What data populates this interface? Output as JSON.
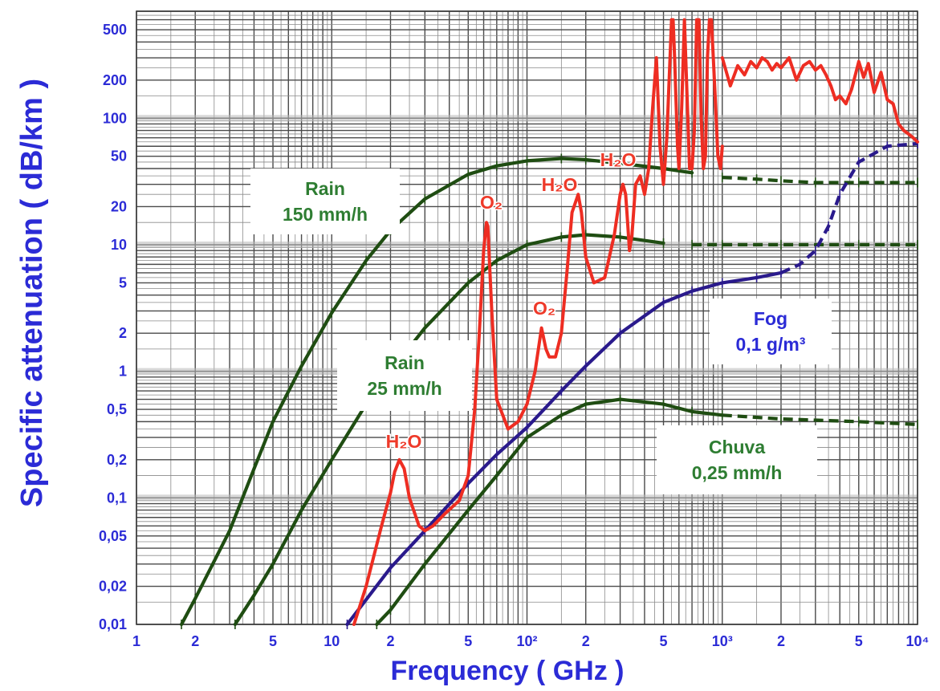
{
  "chart_data": {
    "type": "line",
    "title": "",
    "xlabel": "Frequency ( GHz )",
    "ylabel": "Specific attenuation ( dB/km )",
    "x_scale": "log",
    "y_scale": "log",
    "xlim": [
      1,
      10000
    ],
    "ylim": [
      0.01,
      700
    ],
    "grid": true,
    "x_ticks": [
      {
        "value": 1,
        "label": "1"
      },
      {
        "value": 2,
        "label": "2"
      },
      {
        "value": 5,
        "label": "5"
      },
      {
        "value": 10,
        "label": "10"
      },
      {
        "value": 20,
        "label": "2"
      },
      {
        "value": 50,
        "label": "5"
      },
      {
        "value": 100,
        "label": "10²"
      },
      {
        "value": 200,
        "label": "2"
      },
      {
        "value": 500,
        "label": "5"
      },
      {
        "value": 1000,
        "label": "10³"
      },
      {
        "value": 2000,
        "label": "2"
      },
      {
        "value": 5000,
        "label": "5"
      },
      {
        "value": 10000,
        "label": "10⁴"
      }
    ],
    "y_ticks": [
      {
        "value": 0.01,
        "label": "0,01"
      },
      {
        "value": 0.02,
        "label": "0,02"
      },
      {
        "value": 0.05,
        "label": "0,05"
      },
      {
        "value": 0.1,
        "label": "0,1"
      },
      {
        "value": 0.2,
        "label": "0,2"
      },
      {
        "value": 0.5,
        "label": "0,5"
      },
      {
        "value": 1,
        "label": "1"
      },
      {
        "value": 2,
        "label": "2"
      },
      {
        "value": 5,
        "label": "5"
      },
      {
        "value": 10,
        "label": "10"
      },
      {
        "value": 20,
        "label": "20"
      },
      {
        "value": 50,
        "label": "50"
      },
      {
        "value": 100,
        "label": "100"
      },
      {
        "value": 200,
        "label": "200"
      },
      {
        "value": 500,
        "label": "500"
      }
    ],
    "series": [
      {
        "key": "rain150",
        "color": "#1f4d12",
        "x": [
          1.7,
          2,
          3,
          4,
          5,
          7,
          10,
          15,
          20,
          30,
          50,
          70,
          100,
          150,
          200,
          300,
          500,
          700,
          1000,
          1500,
          2000,
          3000,
          5000,
          10000
        ],
        "y": [
          0.01,
          0.016,
          0.055,
          0.17,
          0.4,
          1.1,
          2.9,
          7.5,
          13,
          23,
          36,
          42,
          46,
          48,
          47,
          44,
          40,
          37,
          34,
          33,
          32,
          31,
          31,
          31
        ],
        "dashed_from_x": 800
      },
      {
        "key": "rain25",
        "color": "#1f4d12",
        "x": [
          3.2,
          4,
          5,
          7,
          10,
          15,
          20,
          30,
          50,
          70,
          100,
          150,
          200,
          300,
          500,
          700,
          1000,
          2000,
          5000,
          10000
        ],
        "y": [
          0.01,
          0.017,
          0.03,
          0.08,
          0.2,
          0.55,
          1,
          2.2,
          5,
          7.5,
          10,
          11.5,
          12,
          11.5,
          10.3,
          10,
          10,
          10,
          10,
          10
        ],
        "dashed_from_x": 550
      },
      {
        "key": "rain025",
        "color": "#1f4d12",
        "x": [
          17,
          20,
          30,
          50,
          70,
          100,
          150,
          200,
          300,
          500,
          700,
          1000,
          2000,
          5000,
          10000
        ],
        "y": [
          0.01,
          0.013,
          0.03,
          0.08,
          0.15,
          0.3,
          0.45,
          0.55,
          0.6,
          0.55,
          0.48,
          0.45,
          0.42,
          0.4,
          0.38
        ],
        "dashed_from_x": 1000
      },
      {
        "key": "fog",
        "color": "#2a1a8c",
        "x": [
          12,
          20,
          30,
          50,
          70,
          100,
          150,
          200,
          300,
          500,
          700,
          1000,
          1500,
          2000,
          2500,
          3000,
          3500,
          4000,
          5000,
          7000,
          10000
        ],
        "y": [
          0.01,
          0.028,
          0.055,
          0.13,
          0.22,
          0.36,
          0.7,
          1.1,
          2,
          3.5,
          4.3,
          5,
          5.5,
          6,
          7,
          9,
          14,
          25,
          45,
          60,
          63
        ],
        "dashed_from_x": 2000
      },
      {
        "key": "gases",
        "color": "#ee2d22",
        "x": [
          13,
          15,
          18,
          20,
          21,
          22.2,
          23.5,
          25,
          28,
          30,
          33,
          38,
          45,
          50,
          54,
          57,
          60,
          62,
          63,
          66,
          70,
          80,
          90,
          100,
          110,
          118.7,
          125,
          130,
          140,
          150,
          160,
          170,
          183,
          190,
          200,
          220,
          250,
          280,
          300,
          310,
          320,
          325,
          335,
          345,
          360,
          380,
          400,
          420,
          440,
          460,
          480,
          500,
          520,
          550,
          560,
          570,
          590,
          600,
          620,
          640,
          660,
          680,
          700,
          720,
          740,
          760,
          780,
          800,
          820,
          840,
          860,
          880,
          900,
          920,
          950,
          980,
          1000
        ],
        "y": [
          0.01,
          0.02,
          0.06,
          0.11,
          0.16,
          0.2,
          0.17,
          0.1,
          0.06,
          0.055,
          0.06,
          0.075,
          0.095,
          0.15,
          0.5,
          2,
          9,
          15,
          14,
          3,
          0.6,
          0.35,
          0.4,
          0.55,
          1,
          2.2,
          1.5,
          1.3,
          1.3,
          2,
          6,
          18,
          25,
          18,
          8,
          5,
          5.5,
          12,
          25,
          30,
          25,
          18,
          9,
          12,
          30,
          35,
          25,
          40,
          120,
          300,
          60,
          30,
          70,
          600,
          600,
          300,
          60,
          40,
          120,
          600,
          150,
          40,
          40,
          80,
          600,
          600,
          100,
          40,
          50,
          300,
          600,
          600,
          300,
          150,
          50,
          40,
          60
        ]
      },
      {
        "key": "gases_noise",
        "color": "#ee2d22",
        "x": [
          1000,
          1100,
          1200,
          1300,
          1400,
          1500,
          1600,
          1700,
          1800,
          1900,
          2000,
          2200,
          2400,
          2600,
          2800,
          3000,
          3200,
          3400,
          3600,
          3800,
          4000,
          4300,
          4600,
          5000,
          5300,
          5600,
          6000,
          6500,
          7000,
          7500,
          8000,
          8500,
          9000,
          9500,
          10000
        ],
        "y": [
          300,
          180,
          260,
          220,
          280,
          250,
          300,
          280,
          240,
          270,
          250,
          300,
          200,
          260,
          280,
          240,
          260,
          220,
          180,
          140,
          150,
          130,
          170,
          280,
          210,
          270,
          160,
          230,
          140,
          130,
          90,
          80,
          75,
          70,
          65
        ]
      }
    ],
    "annotations": [
      {
        "key": "rain150",
        "lines": [
          "Rain",
          "150 mm/h"
        ],
        "color": "#2e7d32"
      },
      {
        "key": "rain25",
        "lines": [
          "Rain",
          "25 mm/h"
        ],
        "color": "#2e7d32"
      },
      {
        "key": "fog",
        "lines": [
          "Fog",
          "0,1 g/m³"
        ],
        "color": "#2b2bd6"
      },
      {
        "key": "chuva",
        "lines": [
          "Chuva",
          "0,25 mm/h"
        ],
        "color": "#2e7d32"
      },
      {
        "key": "h2o_1",
        "lines": [
          "H₂O"
        ],
        "color": "#ee3a2a"
      },
      {
        "key": "o2_1",
        "lines": [
          "O₂"
        ],
        "color": "#ee3a2a"
      },
      {
        "key": "o2_2",
        "lines": [
          "O₂"
        ],
        "color": "#ee3a2a"
      },
      {
        "key": "h2o_2",
        "lines": [
          "H₂O"
        ],
        "color": "#ee3a2a"
      },
      {
        "key": "h2o_3",
        "lines": [
          "H₂O"
        ],
        "color": "#ee3a2a"
      }
    ]
  }
}
